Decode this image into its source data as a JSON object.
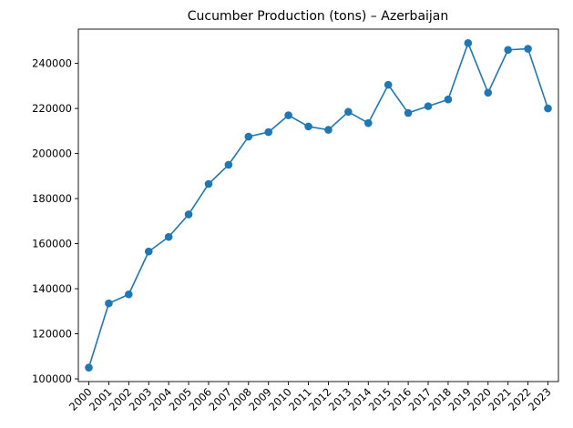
{
  "chart_data": {
    "type": "line",
    "title": "Cucumber Production (tons) – Azerbaijan",
    "xlabel": "",
    "ylabel": "",
    "categories": [
      "2000",
      "2001",
      "2002",
      "2003",
      "2004",
      "2005",
      "2006",
      "2007",
      "2008",
      "2009",
      "2010",
      "2011",
      "2012",
      "2013",
      "2014",
      "2015",
      "2016",
      "2017",
      "2018",
      "2019",
      "2020",
      "2021",
      "2022",
      "2023"
    ],
    "series": [
      {
        "values": [
          105000,
          133500,
          137500,
          156500,
          163000,
          173000,
          186500,
          195000,
          207500,
          209500,
          217000,
          212000,
          210500,
          218500,
          213500,
          230500,
          218000,
          221000,
          224000,
          249000,
          227000,
          246000,
          246500,
          220000
        ],
        "color": "#1f77b4",
        "marker": "circle"
      }
    ],
    "yticks": [
      100000,
      120000,
      140000,
      160000,
      180000,
      200000,
      220000,
      240000
    ],
    "ylim": [
      98800,
      255200
    ],
    "grid": false,
    "legend": "none"
  }
}
